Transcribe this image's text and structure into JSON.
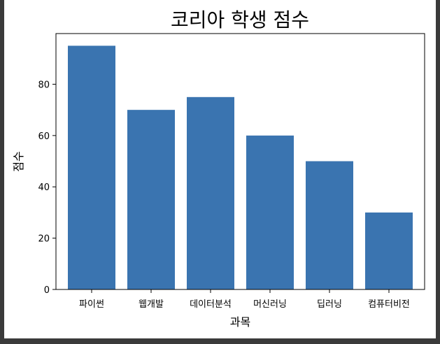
{
  "chart_data": {
    "type": "bar",
    "title": "코리아 학생 점수",
    "xlabel": "과목",
    "ylabel": "점수",
    "categories": [
      "파이썬",
      "웹개발",
      "데이터분석",
      "머신러닝",
      "딥러닝",
      "컴퓨터비전"
    ],
    "values": [
      95,
      70,
      75,
      60,
      50,
      30
    ],
    "ylim": [
      0,
      99.75
    ],
    "yticks": [
      0,
      20,
      40,
      60,
      80
    ],
    "bar_color": "#3a74b0",
    "grid": false,
    "legend": "none"
  }
}
